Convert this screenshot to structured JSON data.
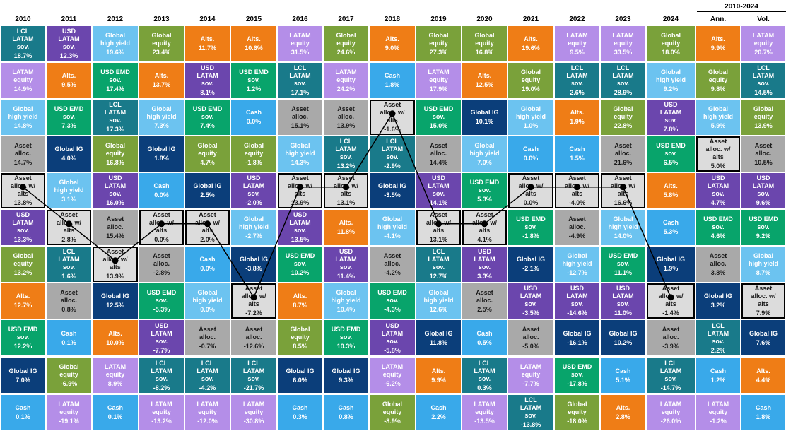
{
  "colors": {
    "LCL LATAM sov.": "#197a8a",
    "USD LATAM sov.": "#6b46ad",
    "Global high yield": "#6cc3f0",
    "Global equity": "#7aa13a",
    "Alts.": "#ef7d16",
    "LATAM equity": "#b48ee8",
    "USD EMD sov.": "#08a46b",
    "Cash": "#39a9ea",
    "Asset alloc.": "#a9a9a9",
    "Asset alloc. w/ alts": "#dcdcdc",
    "Global IG": "#0b3e7a"
  },
  "chart_data": {
    "type": "table",
    "period_header": "2010-2024",
    "columns": [
      "2010",
      "2011",
      "2012",
      "2013",
      "2014",
      "2015",
      "2016",
      "2017",
      "2018",
      "2019",
      "2020",
      "2021",
      "2022",
      "2023",
      "2024",
      "Ann.",
      "Vol."
    ],
    "cells": [
      [
        {
          "n": "LCL LATAM sov.",
          "v": "18.7%"
        },
        {
          "n": "LATAM equity",
          "v": "14.9%"
        },
        {
          "n": "Global high yield",
          "v": "14.8%"
        },
        {
          "n": "Asset alloc.",
          "v": "14.7%"
        },
        {
          "n": "Asset alloc. w/ alts",
          "v": "13.8%"
        },
        {
          "n": "USD LATAM sov.",
          "v": "13.3%"
        },
        {
          "n": "Global equity",
          "v": "13.2%"
        },
        {
          "n": "Alts.",
          "v": "12.7%"
        },
        {
          "n": "USD EMD sov.",
          "v": "12.2%"
        },
        {
          "n": "Global IG",
          "v": "7.0%"
        },
        {
          "n": "Cash",
          "v": "0.1%"
        }
      ],
      [
        {
          "n": "USD LATAM sov.",
          "v": "12.3%"
        },
        {
          "n": "Alts.",
          "v": "9.5%"
        },
        {
          "n": "USD EMD sov.",
          "v": "7.3%"
        },
        {
          "n": "Global IG",
          "v": "4.0%"
        },
        {
          "n": "Global high yield",
          "v": "3.1%"
        },
        {
          "n": "Asset alloc. w/ alts",
          "v": "2.8%"
        },
        {
          "n": "LCL LATAM sov.",
          "v": "1.6%"
        },
        {
          "n": "Asset alloc.",
          "v": "0.8%"
        },
        {
          "n": "Cash",
          "v": "0.1%"
        },
        {
          "n": "Global equity",
          "v": "-6.9%"
        },
        {
          "n": "LATAM equity",
          "v": "-19.1%"
        }
      ],
      [
        {
          "n": "Global high yield",
          "v": "19.6%"
        },
        {
          "n": "USD EMD sov.",
          "v": "17.4%"
        },
        {
          "n": "LCL LATAM sov.",
          "v": "17.3%"
        },
        {
          "n": "Global equity",
          "v": "16.8%"
        },
        {
          "n": "USD LATAM sov.",
          "v": "16.0%"
        },
        {
          "n": "Asset alloc.",
          "v": "15.4%"
        },
        {
          "n": "Asset alloc. w/ alts",
          "v": "13.9%"
        },
        {
          "n": "Global IG",
          "v": "12.5%"
        },
        {
          "n": "Alts.",
          "v": "10.0%"
        },
        {
          "n": "LATAM equity",
          "v": "8.9%"
        },
        {
          "n": "Cash",
          "v": "0.1%"
        }
      ],
      [
        {
          "n": "Global equity",
          "v": "23.4%"
        },
        {
          "n": "Alts.",
          "v": "13.7%"
        },
        {
          "n": "Global high yield",
          "v": "7.3%"
        },
        {
          "n": "Global IG",
          "v": "1.8%"
        },
        {
          "n": "Cash",
          "v": "0.0%"
        },
        {
          "n": "Asset alloc. w/ alts",
          "v": "0.0%"
        },
        {
          "n": "Asset alloc.",
          "v": "-2.8%"
        },
        {
          "n": "USD EMD sov.",
          "v": "-5.3%"
        },
        {
          "n": "USD LATAM sov.",
          "v": "-7.7%"
        },
        {
          "n": "LCL LATAM sov.",
          "v": "-8.2%"
        },
        {
          "n": "LATAM equity",
          "v": "-13.2%"
        }
      ],
      [
        {
          "n": "Alts.",
          "v": "11.7%"
        },
        {
          "n": "USD LATAM sov.",
          "v": "8.1%"
        },
        {
          "n": "USD EMD sov.",
          "v": "7.4%"
        },
        {
          "n": "Global equity",
          "v": "4.7%"
        },
        {
          "n": "Global IG",
          "v": "2.5%"
        },
        {
          "n": "Asset alloc. w/ alts",
          "v": "2.0%"
        },
        {
          "n": "Cash",
          "v": "0.0%"
        },
        {
          "n": "Global high yield",
          "v": "0.0%"
        },
        {
          "n": "Asset alloc.",
          "v": "-0.7%"
        },
        {
          "n": "LCL LATAM sov.",
          "v": "-4.2%"
        },
        {
          "n": "LATAM equity",
          "v": "-12.0%"
        }
      ],
      [
        {
          "n": "Alts.",
          "v": "10.6%"
        },
        {
          "n": "USD EMD sov.",
          "v": "1.2%"
        },
        {
          "n": "Cash",
          "v": "0.0%"
        },
        {
          "n": "Global equity",
          "v": "-1.8%"
        },
        {
          "n": "USD LATAM sov.",
          "v": "-2.0%"
        },
        {
          "n": "Global high yield",
          "v": "-2.7%"
        },
        {
          "n": "Global IG",
          "v": "-3.8%"
        },
        {
          "n": "Asset alloc. w/ alts",
          "v": "-7.2%"
        },
        {
          "n": "Asset alloc.",
          "v": "-12.6%"
        },
        {
          "n": "LCL LATAM sov.",
          "v": "-21.7%"
        },
        {
          "n": "LATAM equity",
          "v": "-30.8%"
        }
      ],
      [
        {
          "n": "LATAM equity",
          "v": "31.5%"
        },
        {
          "n": "LCL LATAM sov.",
          "v": "17.1%"
        },
        {
          "n": "Asset alloc.",
          "v": "15.1%"
        },
        {
          "n": "Global high yield",
          "v": "14.3%"
        },
        {
          "n": "Asset alloc. w/ alts",
          "v": "13.9%"
        },
        {
          "n": "USD LATAM sov.",
          "v": "13.5%"
        },
        {
          "n": "USD EMD sov.",
          "v": "10.2%"
        },
        {
          "n": "Alts.",
          "v": "8.7%"
        },
        {
          "n": "Global equity",
          "v": "8.5%"
        },
        {
          "n": "Global IG",
          "v": "6.0%"
        },
        {
          "n": "Cash",
          "v": "0.3%"
        }
      ],
      [
        {
          "n": "Global equity",
          "v": "24.6%"
        },
        {
          "n": "LATAM equity",
          "v": "24.2%"
        },
        {
          "n": "Asset alloc.",
          "v": "13.9%"
        },
        {
          "n": "LCL LATAM sov.",
          "v": "13.2%"
        },
        {
          "n": "Asset alloc. w/ alts",
          "v": "13.1%"
        },
        {
          "n": "Alts.",
          "v": "11.8%"
        },
        {
          "n": "USD LATAM sov.",
          "v": "11.4%"
        },
        {
          "n": "Global high yield",
          "v": "10.4%"
        },
        {
          "n": "USD EMD sov.",
          "v": "10.3%"
        },
        {
          "n": "Global IG",
          "v": "9.3%"
        },
        {
          "n": "Cash",
          "v": "0.8%"
        }
      ],
      [
        {
          "n": "Alts.",
          "v": "9.0%"
        },
        {
          "n": "Cash",
          "v": "1.8%"
        },
        {
          "n": "Asset alloc. w/ alts",
          "v": "-1.6%"
        },
        {
          "n": "LCL LATAM sov.",
          "v": "-2.9%"
        },
        {
          "n": "Global IG",
          "v": "-3.5%"
        },
        {
          "n": "Global high yield",
          "v": "-4.1%"
        },
        {
          "n": "Asset alloc.",
          "v": "-4.2%"
        },
        {
          "n": "USD EMD sov.",
          "v": "-4.3%"
        },
        {
          "n": "USD LATAM sov.",
          "v": "-5.8%"
        },
        {
          "n": "LATAM equity",
          "v": "-6.2%"
        },
        {
          "n": "Global equity",
          "v": "-8.9%"
        }
      ],
      [
        {
          "n": "Global equity",
          "v": "27.3%"
        },
        {
          "n": "LATAM equity",
          "v": "17.9%"
        },
        {
          "n": "USD EMD sov.",
          "v": "15.0%"
        },
        {
          "n": "Asset alloc.",
          "v": "14.4%"
        },
        {
          "n": "USD LATAM sov.",
          "v": "14.1%"
        },
        {
          "n": "Asset alloc. w/ alts",
          "v": "13.1%"
        },
        {
          "n": "LCL LATAM sov.",
          "v": "12.7%"
        },
        {
          "n": "Global high yield",
          "v": "12.6%"
        },
        {
          "n": "Global IG",
          "v": "11.8%"
        },
        {
          "n": "Alts.",
          "v": "9.9%"
        },
        {
          "n": "Cash",
          "v": "2.2%"
        }
      ],
      [
        {
          "n": "Global equity",
          "v": "16.8%"
        },
        {
          "n": "Alts.",
          "v": "12.5%"
        },
        {
          "n": "Global IG",
          "v": "10.1%"
        },
        {
          "n": "Global high yield",
          "v": "7.0%"
        },
        {
          "n": "USD EMD sov.",
          "v": "5.3%"
        },
        {
          "n": "Asset alloc. w/ alts",
          "v": "4.1%"
        },
        {
          "n": "USD LATAM sov.",
          "v": "3.3%"
        },
        {
          "n": "Asset alloc.",
          "v": "2.5%"
        },
        {
          "n": "Cash",
          "v": "0.5%"
        },
        {
          "n": "LCL LATAM sov.",
          "v": "0.3%"
        },
        {
          "n": "LATAM equity",
          "v": "-13.5%"
        }
      ],
      [
        {
          "n": "Alts.",
          "v": "19.6%"
        },
        {
          "n": "Global equity",
          "v": "19.0%"
        },
        {
          "n": "Global high yield",
          "v": "1.0%"
        },
        {
          "n": "Cash",
          "v": "0.0%"
        },
        {
          "n": "Asset alloc. w/ alts",
          "v": "0.0%"
        },
        {
          "n": "USD EMD sov.",
          "v": "-1.8%"
        },
        {
          "n": "Global IG",
          "v": "-2.1%"
        },
        {
          "n": "USD LATAM sov.",
          "v": "-3.5%"
        },
        {
          "n": "Asset alloc.",
          "v": "-5.0%"
        },
        {
          "n": "LATAM equity",
          "v": "-7.7%"
        },
        {
          "n": "LCL LATAM sov.",
          "v": "-13.8%"
        }
      ],
      [
        {
          "n": "LATAM equity",
          "v": "9.5%"
        },
        {
          "n": "LCL LATAM sov.",
          "v": "2.6%"
        },
        {
          "n": "Alts.",
          "v": "1.9%"
        },
        {
          "n": "Cash",
          "v": "1.5%"
        },
        {
          "n": "Asset alloc. w/ alts",
          "v": "-4.0%"
        },
        {
          "n": "Asset alloc.",
          "v": "-4.9%"
        },
        {
          "n": "Global high yield",
          "v": "-12.7%"
        },
        {
          "n": "USD LATAM sov.",
          "v": "-14.6%"
        },
        {
          "n": "Global IG",
          "v": "-16.1%"
        },
        {
          "n": "USD EMD sov.",
          "v": "-17.8%"
        },
        {
          "n": "Global equity",
          "v": "-18.0%"
        }
      ],
      [
        {
          "n": "LATAM equity",
          "v": "33.5%"
        },
        {
          "n": "LCL LATAM sov.",
          "v": "28.9%"
        },
        {
          "n": "Global equity",
          "v": "22.8%"
        },
        {
          "n": "Asset alloc.",
          "v": "21.6%"
        },
        {
          "n": "Asset alloc. w/ alts",
          "v": "16.6%"
        },
        {
          "n": "Global high yield",
          "v": "14.0%"
        },
        {
          "n": "USD EMD sov.",
          "v": "11.1%"
        },
        {
          "n": "USD LATAM sov.",
          "v": "11.0%"
        },
        {
          "n": "Global IG",
          "v": "10.2%"
        },
        {
          "n": "Cash",
          "v": "5.1%"
        },
        {
          "n": "Alts.",
          "v": "2.8%"
        }
      ],
      [
        {
          "n": "Global equity",
          "v": "18.0%"
        },
        {
          "n": "Global high yield",
          "v": "9.2%"
        },
        {
          "n": "USD LATAM sov.",
          "v": "7.8%"
        },
        {
          "n": "USD EMD sov.",
          "v": "6.5%"
        },
        {
          "n": "Alts.",
          "v": "5.8%"
        },
        {
          "n": "Cash",
          "v": "5.3%"
        },
        {
          "n": "Global IG",
          "v": "1.9%"
        },
        {
          "n": "Asset alloc. w/ alts",
          "v": "-1.4%"
        },
        {
          "n": "Asset alloc.",
          "v": "-3.9%"
        },
        {
          "n": "LCL LATAM sov.",
          "v": "-14.7%"
        },
        {
          "n": "LATAM equity",
          "v": "-26.0%"
        }
      ],
      [
        {
          "n": "Alts.",
          "v": "9.9%"
        },
        {
          "n": "Global equity",
          "v": "9.8%"
        },
        {
          "n": "Global high yield",
          "v": "5.9%"
        },
        {
          "n": "Asset alloc. w/ alts",
          "v": "5.0%"
        },
        {
          "n": "USD LATAM sov.",
          "v": "4.7%"
        },
        {
          "n": "USD EMD sov.",
          "v": "4.6%"
        },
        {
          "n": "Asset alloc.",
          "v": "3.8%"
        },
        {
          "n": "Global IG",
          "v": "3.2%"
        },
        {
          "n": "LCL LATAM sov.",
          "v": "2.2%"
        },
        {
          "n": "Cash",
          "v": "1.2%"
        },
        {
          "n": "LATAM equity",
          "v": "-1.2%"
        }
      ],
      [
        {
          "n": "LATAM equity",
          "v": "20.7%"
        },
        {
          "n": "LCL LATAM sov.",
          "v": "14.5%"
        },
        {
          "n": "Global equity",
          "v": "13.9%"
        },
        {
          "n": "Asset alloc.",
          "v": "10.5%"
        },
        {
          "n": "USD LATAM sov.",
          "v": "9.6%"
        },
        {
          "n": "USD EMD sov.",
          "v": "9.2%"
        },
        {
          "n": "Global high yield",
          "v": "8.7%"
        },
        {
          "n": "Asset alloc. w/ alts",
          "v": "7.9%"
        },
        {
          "n": "Global IG",
          "v": "7.6%"
        },
        {
          "n": "Alts.",
          "v": "4.4%"
        },
        {
          "n": "Cash",
          "v": "1.8%"
        }
      ]
    ],
    "highlight_series": "Asset alloc. w/ alts",
    "highlight_line_columns": 15
  }
}
